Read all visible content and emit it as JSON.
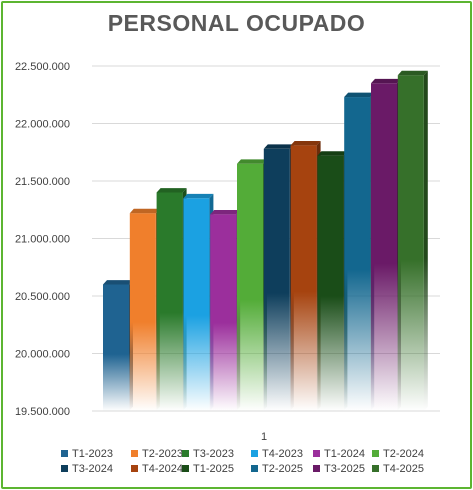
{
  "chart_data": {
    "type": "bar",
    "title": "PERSONAL OCUPADO",
    "categories": [
      "1"
    ],
    "ylim": [
      19500000,
      22500000
    ],
    "yticks": [
      "19.500.000",
      "20.000.000",
      "20.500.000",
      "21.000.000",
      "21.500.000",
      "22.000.000",
      "22.500.000"
    ],
    "ytick_values": [
      19500000,
      20000000,
      20500000,
      21000000,
      21500000,
      22000000,
      22500000
    ],
    "grid": true,
    "legend_position": "bottom",
    "series": [
      {
        "name": "T1-2023",
        "values": [
          20600000
        ],
        "color": "#1f6391"
      },
      {
        "name": "T2-2023",
        "values": [
          21220000
        ],
        "color": "#f07f2c"
      },
      {
        "name": "T3-2023",
        "values": [
          21400000
        ],
        "color": "#2a7a2b"
      },
      {
        "name": "T4-2023",
        "values": [
          21350000
        ],
        "color": "#1ba1e2"
      },
      {
        "name": "T1-2024",
        "values": [
          21210000
        ],
        "color": "#9b2f9c"
      },
      {
        "name": "T2-2024",
        "values": [
          21650000
        ],
        "color": "#53ac38"
      },
      {
        "name": "T3-2024",
        "values": [
          21780000
        ],
        "color": "#0e3e5c"
      },
      {
        "name": "T4-2024",
        "values": [
          21810000
        ],
        "color": "#a6430f"
      },
      {
        "name": "T1-2025",
        "values": [
          21720000
        ],
        "color": "#1a4d18"
      },
      {
        "name": "T2-2025",
        "values": [
          22230000
        ],
        "color": "#13678f"
      },
      {
        "name": "T3-2025",
        "values": [
          22350000
        ],
        "color": "#6a1a67"
      },
      {
        "name": "T4-2025",
        "values": [
          22420000
        ],
        "color": "#36702a"
      }
    ]
  }
}
